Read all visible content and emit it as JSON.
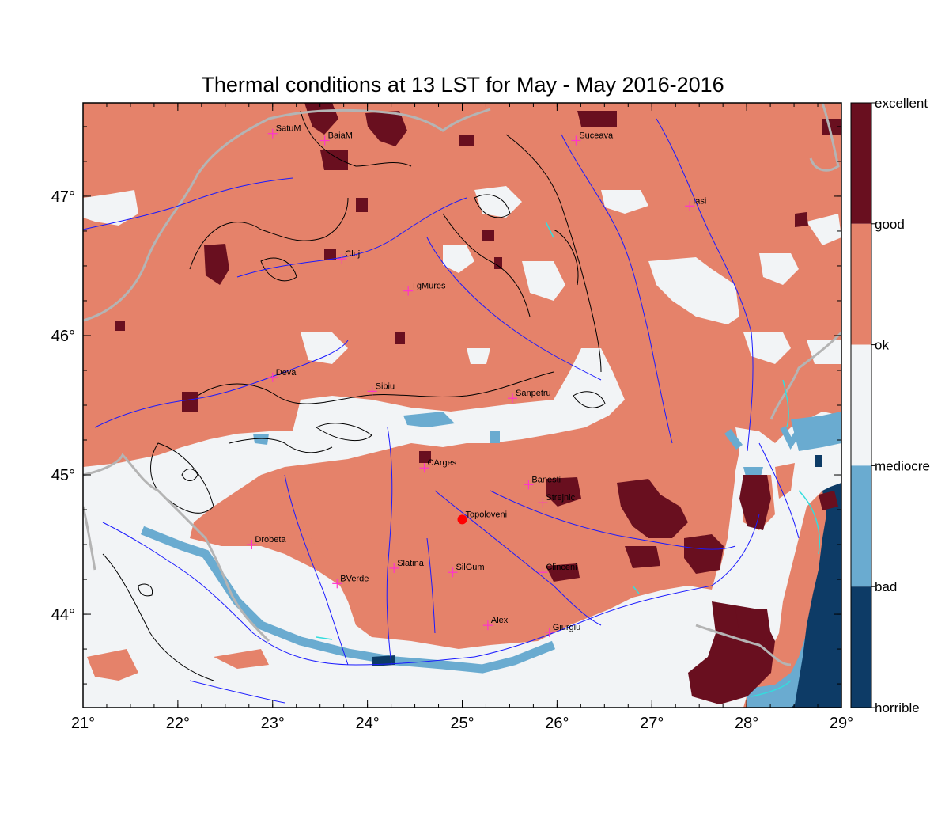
{
  "title": "Thermal conditions at 13 LST for May - May  2016-2016",
  "colors": {
    "ok": "#e5826a",
    "mediocre": "#f2f4f6",
    "bad": "#6aabd0",
    "horrible": "#0d3b66",
    "excellent": "#690f1f",
    "good": "#e5826a",
    "river": "#1a1aff",
    "border": "#b4b4b4",
    "contour": "#000000",
    "city_marker": "#ff33cc",
    "highlight": "#ff0000"
  },
  "axes": {
    "x_ticks": [
      "21°",
      "22°",
      "23°",
      "24°",
      "25°",
      "26°",
      "27°",
      "28°",
      "29°"
    ],
    "y_ticks": [
      "47°",
      "46°",
      "45°",
      "44°"
    ],
    "lon_range": [
      21,
      29
    ],
    "lat_range": [
      43.33,
      47.67
    ]
  },
  "colorbar": {
    "labels": [
      "excellent",
      "good",
      "ok",
      "mediocre",
      "bad",
      "horrible"
    ],
    "segments": [
      "excellent",
      "good",
      "ok",
      "mediocre",
      "bad",
      "horrible"
    ]
  },
  "cities": [
    {
      "name": "SatuM",
      "lon": 23.0,
      "lat": 47.45
    },
    {
      "name": "BaiaM",
      "lon": 23.55,
      "lat": 47.4
    },
    {
      "name": "Suceava",
      "lon": 26.2,
      "lat": 47.4
    },
    {
      "name": "Iasi",
      "lon": 27.4,
      "lat": 46.93
    },
    {
      "name": "Cluj",
      "lon": 23.73,
      "lat": 46.55
    },
    {
      "name": "TgMures",
      "lon": 24.43,
      "lat": 46.32
    },
    {
      "name": "Deva",
      "lon": 23.0,
      "lat": 45.7
    },
    {
      "name": "Sibiu",
      "lon": 24.05,
      "lat": 45.6
    },
    {
      "name": "Sanpetru",
      "lon": 25.53,
      "lat": 45.55
    },
    {
      "name": "CArges",
      "lon": 24.6,
      "lat": 45.05
    },
    {
      "name": "Banesti",
      "lon": 25.7,
      "lat": 44.93
    },
    {
      "name": "Strejnic",
      "lon": 25.85,
      "lat": 44.8
    },
    {
      "name": "Topoloveni",
      "lon": 25.0,
      "lat": 44.68,
      "highlight": true
    },
    {
      "name": "Drobeta",
      "lon": 22.78,
      "lat": 44.5
    },
    {
      "name": "Slatina",
      "lon": 24.28,
      "lat": 44.33
    },
    {
      "name": "SilGum",
      "lon": 24.9,
      "lat": 44.3
    },
    {
      "name": "Clinceni",
      "lon": 25.85,
      "lat": 44.3
    },
    {
      "name": "BVerde",
      "lon": 23.68,
      "lat": 44.22
    },
    {
      "name": "Alex",
      "lon": 25.27,
      "lat": 43.92
    },
    {
      "name": "Giurgiu",
      "lon": 25.92,
      "lat": 43.87
    }
  ]
}
